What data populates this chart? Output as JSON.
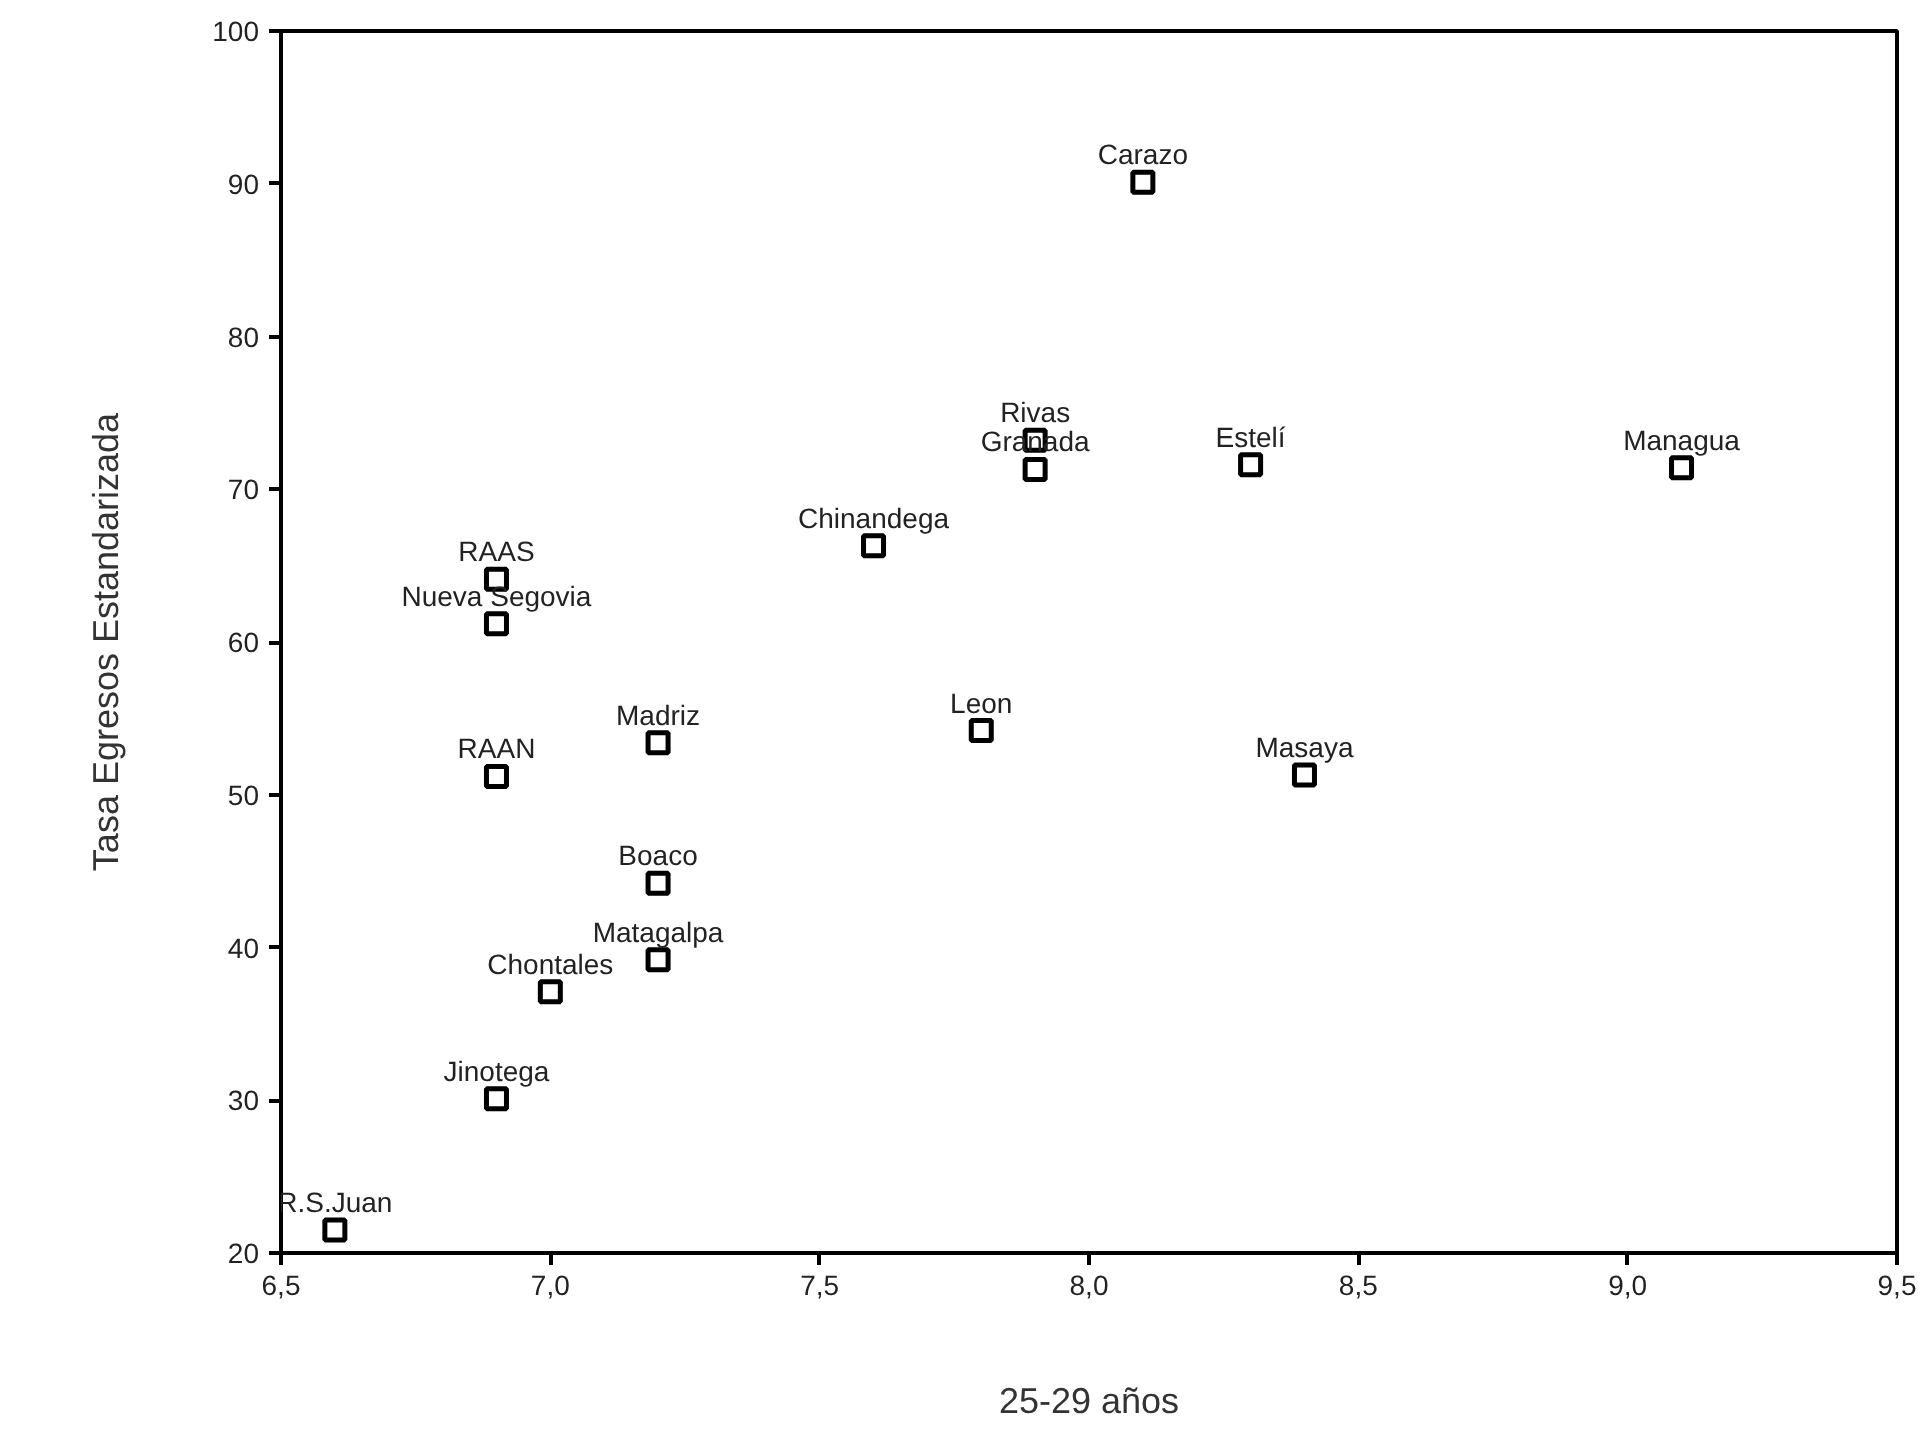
{
  "chart_data": {
    "type": "scatter",
    "xlabel": "25-29 años",
    "ylabel": "Tasa Egresos Estandarizada",
    "series": [
      {
        "color": "#000000",
        "x": [
          8.1,
          7.9,
          7.9,
          8.3,
          9.1,
          7.6,
          6.9,
          6.9,
          7.8,
          6.9,
          7.2,
          8.4,
          7.2,
          7.2,
          7.0,
          6.9,
          6.6
        ],
        "values": [
          90.1,
          73.2,
          71.3,
          71.6,
          71.4,
          66.3,
          64.1,
          61.2,
          54.2,
          51.2,
          53.4,
          51.3,
          44.2,
          39.2,
          37.1,
          30.1,
          21.5
        ]
      }
    ],
    "annotations": [
      {
        "text": "Carazo",
        "x": 8.1,
        "y": 90.1
      },
      {
        "text": "Rivas",
        "x": 7.9,
        "y": 73.2
      },
      {
        "text": "Granada",
        "x": 7.9,
        "y": 71.3
      },
      {
        "text": "Estelí",
        "x": 8.3,
        "y": 71.6
      },
      {
        "text": "Managua",
        "x": 9.1,
        "y": 71.4
      },
      {
        "text": "Chinandega",
        "x": 7.6,
        "y": 66.3
      },
      {
        "text": "RAAS",
        "x": 6.9,
        "y": 64.1
      },
      {
        "text": "Nueva Segovia",
        "x": 6.9,
        "y": 61.2
      },
      {
        "text": "Leon",
        "x": 7.8,
        "y": 54.2
      },
      {
        "text": "RAAN",
        "x": 6.9,
        "y": 51.2
      },
      {
        "text": "Madriz",
        "x": 7.2,
        "y": 53.4
      },
      {
        "text": "Masaya",
        "x": 8.4,
        "y": 51.3
      },
      {
        "text": "Boaco",
        "x": 7.2,
        "y": 44.2
      },
      {
        "text": "Matagalpa",
        "x": 7.2,
        "y": 39.2
      },
      {
        "text": "Chontales",
        "x": 7.0,
        "y": 37.1
      },
      {
        "text": "Jinotega",
        "x": 6.9,
        "y": 30.1
      },
      {
        "text": "R.S.Juan",
        "x": 6.6,
        "y": 21.5
      }
    ],
    "xlim": [
      6.5,
      9.5
    ],
    "xticks": [
      {
        "value": 6.5,
        "label": "6,5"
      },
      {
        "value": 7.0,
        "label": "7,0"
      },
      {
        "value": 7.5,
        "label": "7,5"
      },
      {
        "value": 8.0,
        "label": "8,0"
      },
      {
        "value": 8.5,
        "label": "8,5"
      },
      {
        "value": 9.0,
        "label": "9,0"
      },
      {
        "value": 9.5,
        "label": "9,5"
      }
    ],
    "ylim": [
      20,
      100
    ],
    "yticks": [
      20,
      30,
      40,
      50,
      60,
      70,
      80,
      90,
      100
    ],
    "marker": "square"
  }
}
